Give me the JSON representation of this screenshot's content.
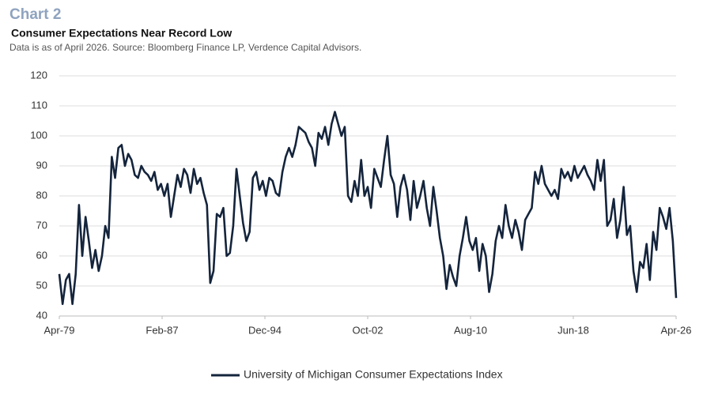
{
  "chart_data": {
    "type": "line",
    "label": "Chart 2",
    "title": "Consumer Expectations Near Record Low",
    "subtitle": "Data is as of April 2026.  Source: Bloomberg Finance LP, Verdence Capital Advisors.",
    "x": [
      "Apr-79",
      "Jul-79",
      "Oct-79",
      "Jan-80",
      "Apr-80",
      "Jul-80",
      "Oct-80",
      "Jan-81",
      "Apr-81",
      "Jul-81",
      "Oct-81",
      "Jan-82",
      "Apr-82",
      "Jul-82",
      "Oct-82",
      "Jan-83",
      "Apr-83",
      "Jul-83",
      "Oct-83",
      "Jan-84",
      "Apr-84",
      "Jul-84",
      "Oct-84",
      "Jan-85",
      "Apr-85",
      "Jul-85",
      "Oct-85",
      "Jan-86",
      "Apr-86",
      "Jul-86",
      "Oct-86",
      "Jan-87",
      "Apr-87",
      "Jul-87",
      "Oct-87",
      "Jan-88",
      "Apr-88",
      "Jul-88",
      "Oct-88",
      "Jan-89",
      "Apr-89",
      "Jul-89",
      "Oct-89",
      "Jan-90",
      "Apr-90",
      "Jul-90",
      "Oct-90",
      "Jan-91",
      "Apr-91",
      "Jul-91",
      "Oct-91",
      "Jan-92",
      "Apr-92",
      "Jul-92",
      "Oct-92",
      "Jan-93",
      "Apr-93",
      "Jul-93",
      "Oct-93",
      "Jan-94",
      "Apr-94",
      "Jul-94",
      "Oct-94",
      "Jan-95",
      "Apr-95",
      "Jul-95",
      "Oct-95",
      "Jan-96",
      "Apr-96",
      "Jul-96",
      "Oct-96",
      "Jan-97",
      "Apr-97",
      "Jul-97",
      "Oct-97",
      "Jan-98",
      "Apr-98",
      "Jul-98",
      "Oct-98",
      "Jan-99",
      "Apr-99",
      "Jul-99",
      "Oct-99",
      "Jan-00",
      "Apr-00",
      "Jul-00",
      "Oct-00",
      "Jan-01",
      "Apr-01",
      "Jul-01",
      "Oct-01",
      "Jan-02",
      "Apr-02",
      "Jul-02",
      "Oct-02",
      "Jan-03",
      "Apr-03",
      "Jul-03",
      "Oct-03",
      "Jan-04",
      "Apr-04",
      "Jul-04",
      "Oct-04",
      "Jan-05",
      "Apr-05",
      "Jul-05",
      "Oct-05",
      "Jan-06",
      "Apr-06",
      "Jul-06",
      "Oct-06",
      "Jan-07",
      "Apr-07",
      "Jul-07",
      "Oct-07",
      "Jan-08",
      "Apr-08",
      "Jul-08",
      "Oct-08",
      "Jan-09",
      "Apr-09",
      "Jul-09",
      "Oct-09",
      "Jan-10",
      "Apr-10",
      "Jul-10",
      "Oct-10",
      "Jan-11",
      "Apr-11",
      "Jul-11",
      "Oct-11",
      "Jan-12",
      "Apr-12",
      "Jul-12",
      "Oct-12",
      "Jan-13",
      "Apr-13",
      "Jul-13",
      "Oct-13",
      "Jan-14",
      "Apr-14",
      "Jul-14",
      "Oct-14",
      "Jan-15",
      "Apr-15",
      "Jul-15",
      "Oct-15",
      "Jan-16",
      "Apr-16",
      "Jul-16",
      "Oct-16",
      "Jan-17",
      "Apr-17",
      "Jul-17",
      "Oct-17",
      "Jan-18",
      "Apr-18",
      "Jul-18",
      "Oct-18",
      "Jan-19",
      "Apr-19",
      "Jul-19",
      "Oct-19",
      "Jan-20",
      "Apr-20",
      "Jul-20",
      "Oct-20",
      "Jan-21",
      "Apr-21",
      "Jul-21",
      "Oct-21",
      "Jan-22",
      "Apr-22",
      "Jul-22",
      "Oct-22",
      "Jan-23",
      "Apr-23",
      "Jul-23",
      "Oct-23",
      "Jan-24",
      "Apr-24",
      "Jul-24",
      "Oct-24",
      "Jan-25",
      "Apr-25",
      "Jul-25",
      "Oct-25",
      "Jan-26",
      "Apr-26"
    ],
    "series": [
      {
        "name": "University of Michigan Consumer Expectations Index",
        "color": "#14243c",
        "values": [
          54,
          44,
          52,
          54,
          44,
          54,
          77,
          60,
          73,
          65,
          56,
          62,
          55,
          60,
          70,
          66,
          93,
          86,
          96,
          97,
          90,
          94,
          92,
          87,
          86,
          90,
          88,
          87,
          85,
          88,
          82,
          84,
          80,
          84,
          73,
          80,
          87,
          83,
          89,
          87,
          81,
          89,
          84,
          86,
          81,
          77,
          51,
          55,
          74,
          73,
          76,
          60,
          61,
          70,
          89,
          80,
          71,
          65,
          68,
          86,
          88,
          82,
          85,
          80,
          86,
          85,
          81,
          80,
          88,
          93,
          96,
          93,
          97,
          103,
          102,
          101,
          98,
          96,
          90,
          101,
          99,
          103,
          97,
          104,
          108,
          104,
          100,
          103,
          80,
          78,
          85,
          80,
          92,
          80,
          83,
          76,
          89,
          86,
          83,
          92,
          100,
          87,
          84,
          73,
          83,
          87,
          82,
          72,
          85,
          76,
          80,
          85,
          76,
          70,
          83,
          75,
          66,
          60,
          49,
          57,
          53,
          50,
          60,
          66,
          73,
          65,
          62,
          66,
          55,
          64,
          60,
          48,
          54,
          65,
          70,
          66,
          77,
          70,
          66,
          72,
          68,
          62,
          72,
          74,
          76,
          88,
          84,
          90,
          84,
          82,
          80,
          82,
          79,
          89,
          86,
          88,
          85,
          90,
          86,
          88,
          90,
          87,
          85,
          82,
          92,
          85,
          92,
          70,
          72,
          79,
          66,
          72,
          83,
          67,
          70,
          55,
          48,
          58,
          56,
          64,
          52,
          68,
          62,
          76,
          73,
          69,
          76,
          65,
          46
        ]
      }
    ],
    "xlim": [
      "Apr-79",
      "Apr-26"
    ],
    "xticks": [
      "Apr-79",
      "Feb-87",
      "Dec-94",
      "Oct-02",
      "Aug-10",
      "Jun-18",
      "Apr-26"
    ],
    "ylim": [
      40,
      120
    ],
    "yticks": [
      40,
      50,
      60,
      70,
      80,
      90,
      100,
      110,
      120
    ],
    "grid": true,
    "legend": "bottom"
  }
}
